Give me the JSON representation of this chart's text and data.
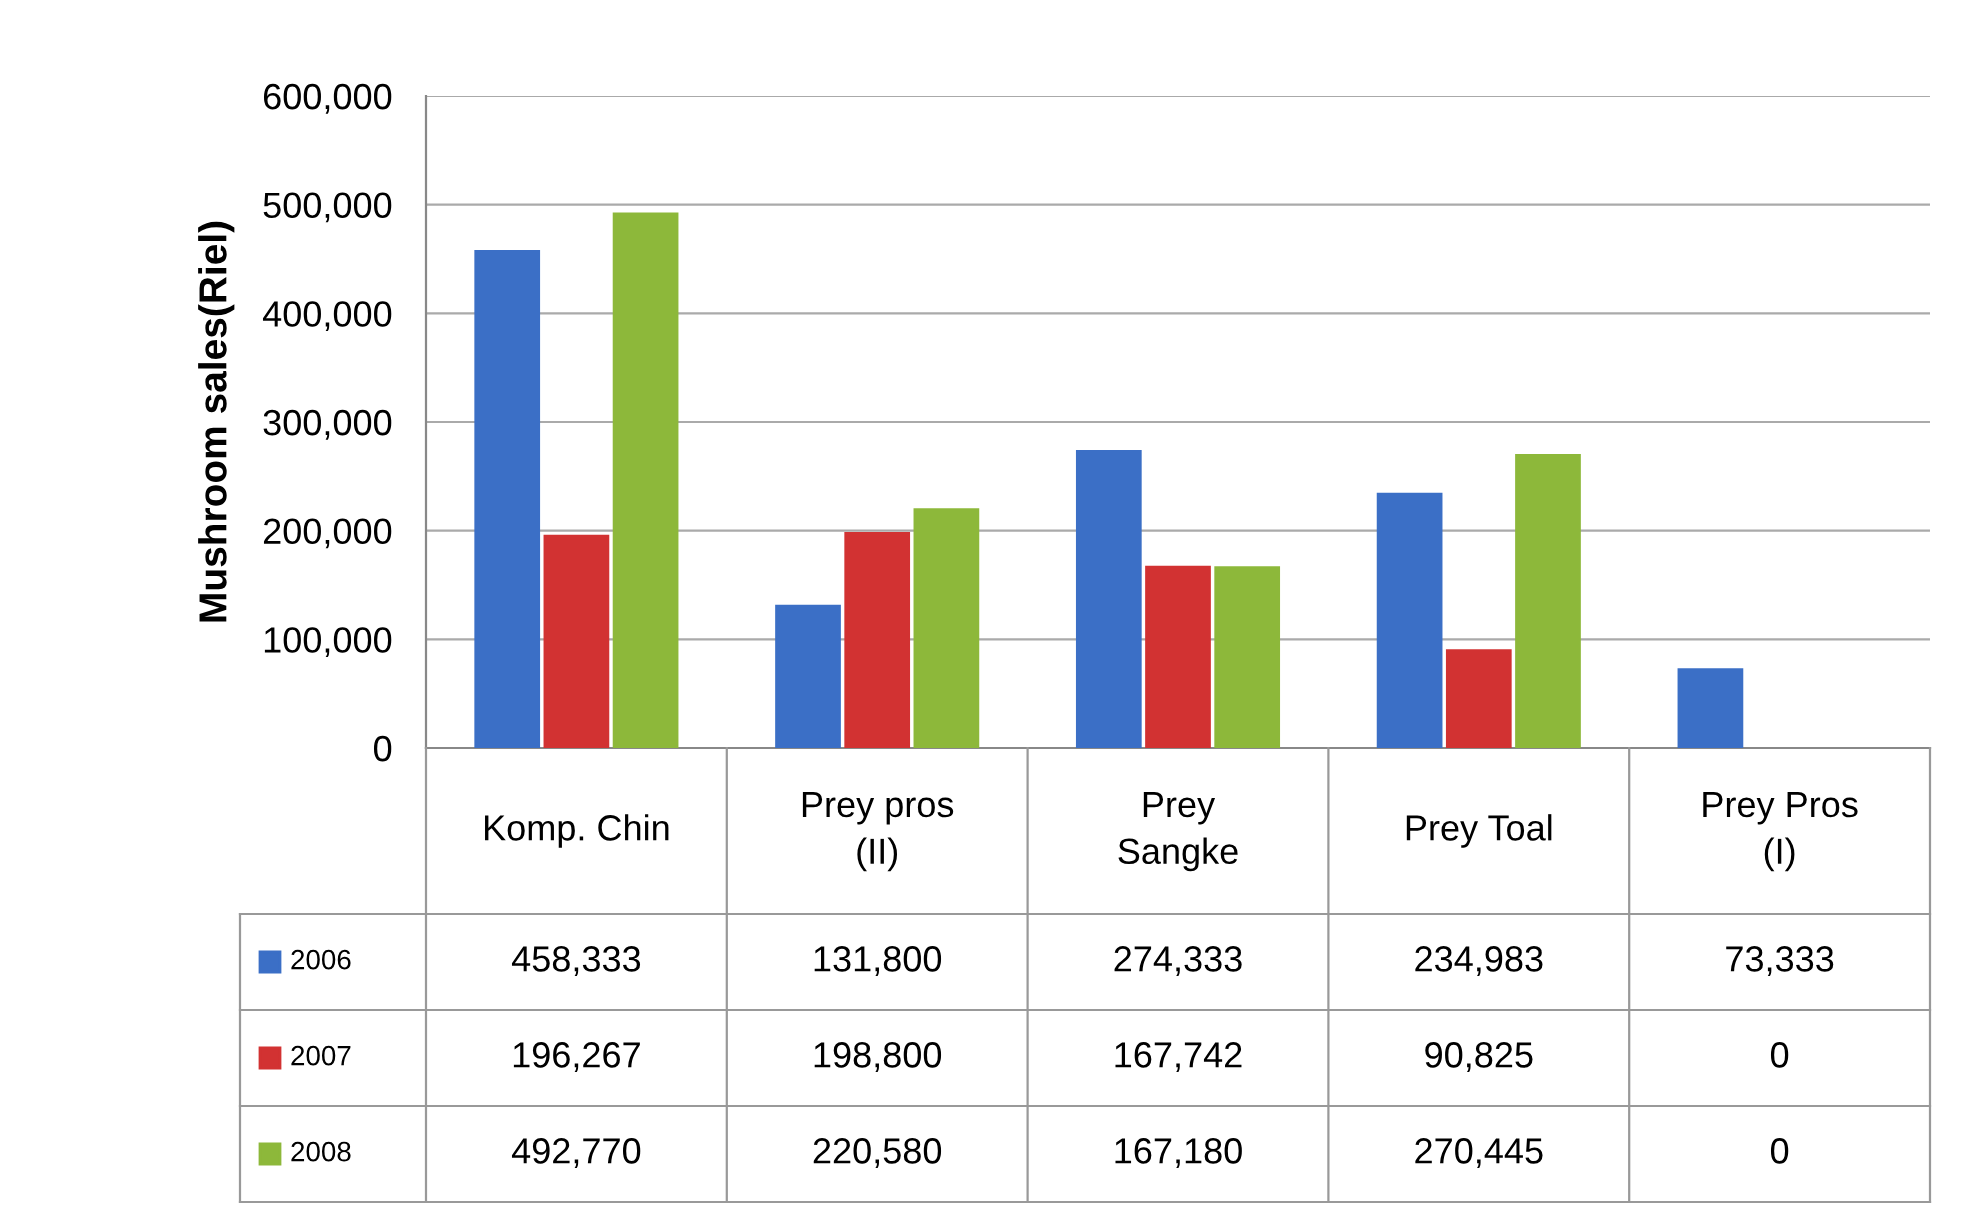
{
  "chart_data": {
    "type": "bar",
    "ylabel": "Mushroom sales(Riel)",
    "categories": [
      "Komp. Chin",
      "Prey pros (II)",
      "Prey Sangke",
      "Prey Toal",
      "Prey Pros (I)"
    ],
    "series": [
      {
        "name": "2006",
        "color": "#3b6fc6",
        "values": [
          458333,
          131800,
          274333,
          234983,
          73333
        ],
        "value_labels": [
          "458,333",
          "131,800",
          "274,333",
          "234,983",
          "73,333"
        ]
      },
      {
        "name": "2007",
        "color": "#d23232",
        "values": [
          196267,
          198800,
          167742,
          90825,
          0
        ],
        "value_labels": [
          "196,267",
          "198,800",
          "167,742",
          "90,825",
          "0"
        ]
      },
      {
        "name": "2008",
        "color": "#8db83a",
        "values": [
          492770,
          220580,
          167180,
          270445,
          0
        ],
        "value_labels": [
          "492,770",
          "220,580",
          "167,180",
          "270,445",
          "0"
        ]
      }
    ],
    "legend": "bottom left",
    "ylim": [
      0,
      600000
    ],
    "yticks": [
      {
        "value": 0,
        "label": "0"
      },
      {
        "value": 100000,
        "label": "100,000"
      },
      {
        "value": 200000,
        "label": "200,000"
      },
      {
        "value": 300000,
        "label": "300,000"
      },
      {
        "value": 400000,
        "label": "400,000"
      },
      {
        "value": 500000,
        "label": "500,000"
      },
      {
        "value": 600000,
        "label": "600,000"
      }
    ],
    "grid": "y"
  }
}
